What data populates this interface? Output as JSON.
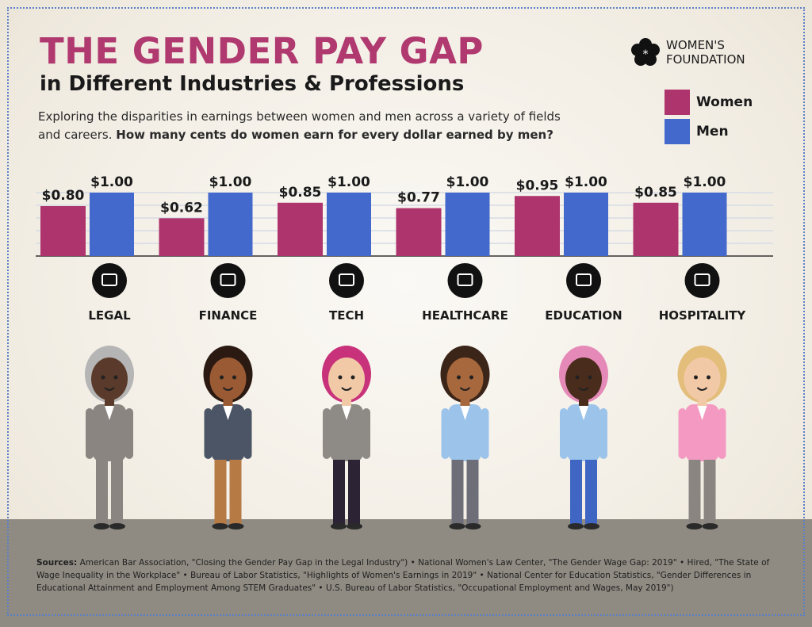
{
  "header": {
    "title": "THE GENDER PAY GAP",
    "subtitle": "in Different Industries & Professions",
    "description_plain": "Exploring the disparities in earnings between women and men across a variety of fields and careers.",
    "description_bold": "How many cents do women earn for every dollar earned by men?"
  },
  "logo": {
    "line1": "WOMEN'S",
    "line2": "FOUNDATION",
    "icon": "flower-asterisk-icon"
  },
  "colors": {
    "women": "#ad346c",
    "men": "#4469cc",
    "title": "#b0396f",
    "floor": "#8f8b82"
  },
  "chart_data": {
    "type": "bar",
    "categories": [
      "LEGAL",
      "FINANCE",
      "TECH",
      "HEALTHCARE",
      "EDUCATION",
      "HOSPITALITY"
    ],
    "category_icons": [
      "scales-icon",
      "bank-icon",
      "gears-icon",
      "medical-cross-icon",
      "chalkboard-icon",
      "hotel-building-icon"
    ],
    "series": [
      {
        "name": "Women",
        "values": [
          0.8,
          0.62,
          0.85,
          0.77,
          0.95,
          0.85
        ],
        "labels": [
          "$0.80",
          "$0.62",
          "$0.85",
          "$0.77",
          "$0.95",
          "$0.85"
        ]
      },
      {
        "name": "Men",
        "values": [
          1.0,
          1.0,
          1.0,
          1.0,
          1.0,
          1.0
        ],
        "labels": [
          "$1.00",
          "$1.00",
          "$1.00",
          "$1.00",
          "$1.00",
          "$1.00"
        ]
      }
    ],
    "ylim": [
      0.06,
      1.0
    ],
    "grid": true,
    "legend": "top-right"
  },
  "sources": {
    "label": "Sources:",
    "text": " American Bar Association, \"Closing the Gender Pay Gap in the Legal Industry\") • National Women's Law Center, \"The Gender Wage Gap: 2019\" • Hired, \"The State of Wage Inequality in the Workplace\" • Bureau of Labor Statistics, \"Highlights of Women's Earnings in 2019\" • National Center for Education Statistics, \"Gender Differences in Educational Attainment and Employment Among STEM Graduates\" • U.S. Bureau of Labor Statistics, \"Occupational Employment and Wages, May 2019\")"
  }
}
